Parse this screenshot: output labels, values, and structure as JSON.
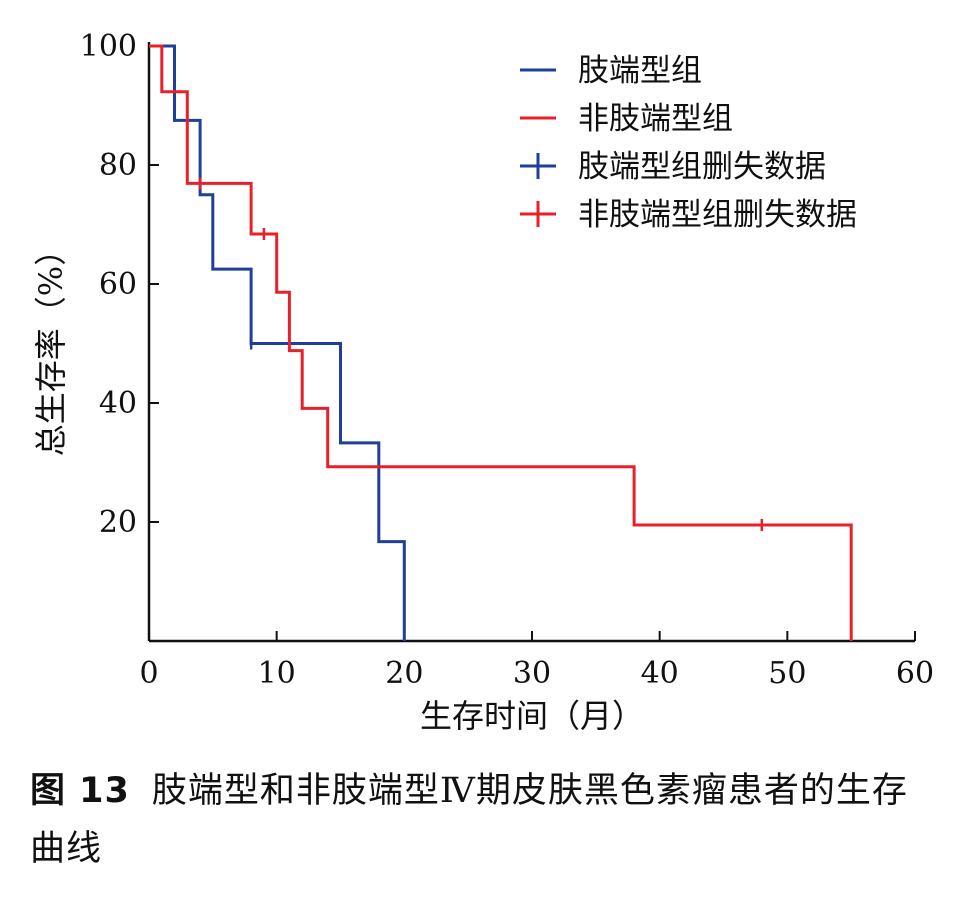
{
  "chart_data": {
    "type": "line",
    "subtype": "kaplan-meier",
    "xlabel": "生存时间（月）",
    "ylabel": "总生存率（%）",
    "xlim": [
      0,
      60
    ],
    "ylim": [
      0,
      100
    ],
    "xticks": [
      "0",
      "10",
      "20",
      "30",
      "40",
      "50",
      "60"
    ],
    "yticks": [
      "20",
      "40",
      "60",
      "80",
      "100"
    ],
    "grid": false,
    "legend_position": "top-right",
    "series": [
      {
        "name": "肢端型组",
        "color": "#1f3f9a",
        "steps": [
          [
            0,
            100
          ],
          [
            2,
            100
          ],
          [
            2,
            87.5
          ],
          [
            4,
            87.5
          ],
          [
            4,
            75
          ],
          [
            5,
            75
          ],
          [
            5,
            62.5
          ],
          [
            8,
            62.5
          ],
          [
            8,
            50
          ],
          [
            15,
            50
          ],
          [
            15,
            33.3
          ],
          [
            18,
            33.3
          ],
          [
            18,
            16.7
          ],
          [
            20,
            16.7
          ],
          [
            20,
            0
          ]
        ],
        "censored": [
          [
            8,
            50
          ]
        ]
      },
      {
        "name": "非肢端型组",
        "color": "#e8202a",
        "steps": [
          [
            0,
            100
          ],
          [
            1,
            100
          ],
          [
            1,
            92.3
          ],
          [
            3,
            92.3
          ],
          [
            3,
            76.9
          ],
          [
            8,
            76.9
          ],
          [
            8,
            68.4
          ],
          [
            10,
            68.4
          ],
          [
            10,
            58.6
          ],
          [
            11,
            58.6
          ],
          [
            11,
            48.8
          ],
          [
            12,
            48.8
          ],
          [
            12,
            39.1
          ],
          [
            14,
            39.1
          ],
          [
            14,
            29.3
          ],
          [
            38,
            29.3
          ],
          [
            38,
            19.5
          ],
          [
            55,
            19.5
          ],
          [
            55,
            0
          ]
        ],
        "censored": [
          [
            4,
            76.9
          ],
          [
            9,
            68.4
          ],
          [
            48,
            19.5
          ]
        ]
      }
    ],
    "legend": [
      {
        "label": "肢端型组",
        "color": "#1f3f9a",
        "marker": "line"
      },
      {
        "label": "非肢端型组",
        "color": "#e8202a",
        "marker": "line"
      },
      {
        "label": "肢端型组删失数据",
        "color": "#1f3f9a",
        "marker": "plus"
      },
      {
        "label": "非肢端型组删失数据",
        "color": "#e8202a",
        "marker": "plus"
      }
    ]
  },
  "caption": {
    "label": "图 13",
    "text": "肢端型和非肢端型Ⅳ期皮肤黑色素瘤患者的生存曲线"
  }
}
